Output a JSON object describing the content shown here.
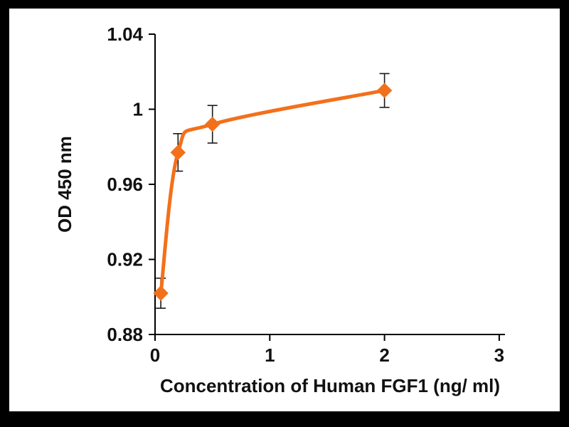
{
  "figure": {
    "frame_color": "#000000",
    "background_color": "#ffffff"
  },
  "chart_data": {
    "type": "line",
    "title": "",
    "xlabel": "Concentration of Human FGF1 (ng/ ml)",
    "ylabel": "OD 450 nm",
    "x": [
      0.05,
      0.2,
      0.5,
      2
    ],
    "y": [
      0.902,
      0.977,
      0.992,
      1.01
    ],
    "yerr": [
      0.008,
      0.01,
      0.01,
      0.009
    ],
    "xlim": [
      0,
      3.05
    ],
    "ylim": [
      0.88,
      1.04
    ],
    "xticks": [
      0,
      1,
      2,
      3
    ],
    "xtick_labels": [
      "0",
      "1",
      "2",
      "3"
    ],
    "yticks": [
      0.88,
      0.92,
      0.96,
      1,
      1.04
    ],
    "ytick_labels": [
      "0.88",
      "0.92",
      "0.96",
      "1",
      "1.04"
    ],
    "grid": false,
    "legend": "none",
    "line_color": "#f3701b",
    "marker": "diamond",
    "marker_color": "#f3701b",
    "errorbar_color": "#1a1a1a",
    "axis_color": "#000000"
  }
}
